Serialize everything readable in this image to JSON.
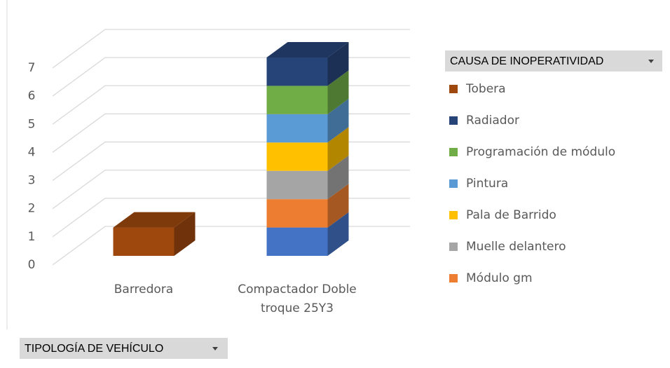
{
  "chart_data": {
    "type": "bar3d_stacked",
    "categories": [
      [
        "Barredora"
      ],
      [
        "Compactador Doble",
        "troque 25Y3"
      ]
    ],
    "series": [
      {
        "name": null,
        "color": "#4472c4",
        "values": [
          null,
          1
        ]
      },
      {
        "name": "Módulo gm",
        "color": "#ed7d31",
        "values": [
          null,
          1
        ]
      },
      {
        "name": "Muelle delantero",
        "color": "#a5a5a5",
        "values": [
          null,
          1
        ]
      },
      {
        "name": "Pala de Barrido",
        "color": "#ffc000",
        "values": [
          null,
          1
        ]
      },
      {
        "name": "Pintura",
        "color": "#5b9bd5",
        "values": [
          null,
          1
        ]
      },
      {
        "name": "Programación de módulo",
        "color": "#70ad47",
        "values": [
          null,
          1
        ]
      },
      {
        "name": "Radiador",
        "color": "#264478",
        "values": [
          null,
          1
        ]
      },
      {
        "name": "Tobera",
        "color": "#9e480e",
        "values": [
          1,
          null
        ]
      }
    ],
    "ylim": [
      0,
      7
    ],
    "yticks": [
      0,
      1,
      2,
      3,
      4,
      5,
      6,
      7
    ],
    "grid": true,
    "legend_title": "CAUSA DE INOPERATIVIDAD",
    "axis_filter": "TIPOLOGÍA DE VEHÍCULO"
  }
}
